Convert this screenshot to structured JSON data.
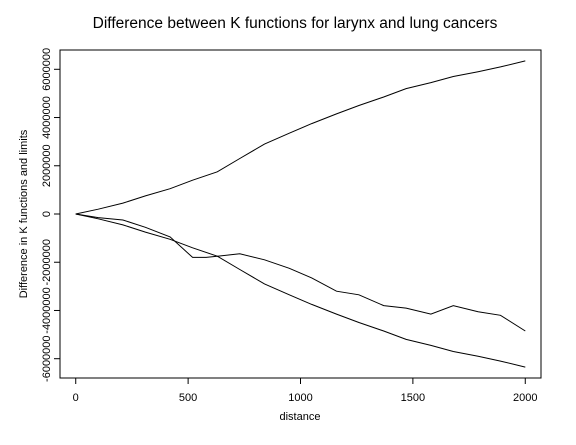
{
  "chart_data": {
    "type": "line",
    "title": "Difference between K functions for larynx and lung cancers",
    "xlabel": "distance",
    "ylabel": "Difference in K functions and limits",
    "xlim": [
      -70,
      2070
    ],
    "ylim": [
      -6800000,
      6800000
    ],
    "xticks": [
      0,
      500,
      1000,
      1500,
      2000
    ],
    "yticks": [
      -6000000,
      -4000000,
      -2000000,
      0,
      2000000,
      4000000,
      6000000
    ],
    "ytick_labels": [
      "-6000000",
      "-4000000",
      "-2000000",
      "0",
      "2000000",
      "4000000",
      "6000000"
    ],
    "grid": false,
    "series": [
      {
        "x": [
          0,
          100,
          210,
          310,
          420,
          520,
          630,
          730,
          840,
          950,
          1050,
          1160,
          1260,
          1370,
          1470,
          1580,
          1680,
          1790,
          1890,
          2000
        ],
        "y": [
          0,
          200000,
          450000,
          750000,
          1050000,
          1400000,
          1750000,
          2300000,
          2900000,
          3350000,
          3750000,
          4150000,
          4500000,
          4850000,
          5200000,
          5450000,
          5700000,
          5900000,
          6100000,
          6350000
        ]
      },
      {
        "x": [
          0,
          100,
          210,
          310,
          420,
          520,
          630,
          730,
          840,
          950,
          1050,
          1160,
          1260,
          1370,
          1470,
          1580,
          1680,
          1790,
          1890,
          2000
        ],
        "y": [
          0,
          -200000,
          -450000,
          -750000,
          -1050000,
          -1400000,
          -1750000,
          -2300000,
          -2900000,
          -3350000,
          -3750000,
          -4150000,
          -4500000,
          -4850000,
          -5200000,
          -5450000,
          -5700000,
          -5900000,
          -6100000,
          -6350000
        ]
      },
      {
        "x": [
          0,
          100,
          210,
          310,
          420,
          520,
          580,
          630,
          730,
          840,
          950,
          1050,
          1160,
          1260,
          1370,
          1470,
          1580,
          1680,
          1790,
          1890,
          2000
        ],
        "y": [
          0,
          -150000,
          -250000,
          -550000,
          -950000,
          -1800000,
          -1800000,
          -1750000,
          -1650000,
          -1900000,
          -2250000,
          -2650000,
          -3200000,
          -3350000,
          -3800000,
          -3900000,
          -4150000,
          -3800000,
          -4050000,
          -4200000,
          -4850000
        ]
      }
    ]
  }
}
